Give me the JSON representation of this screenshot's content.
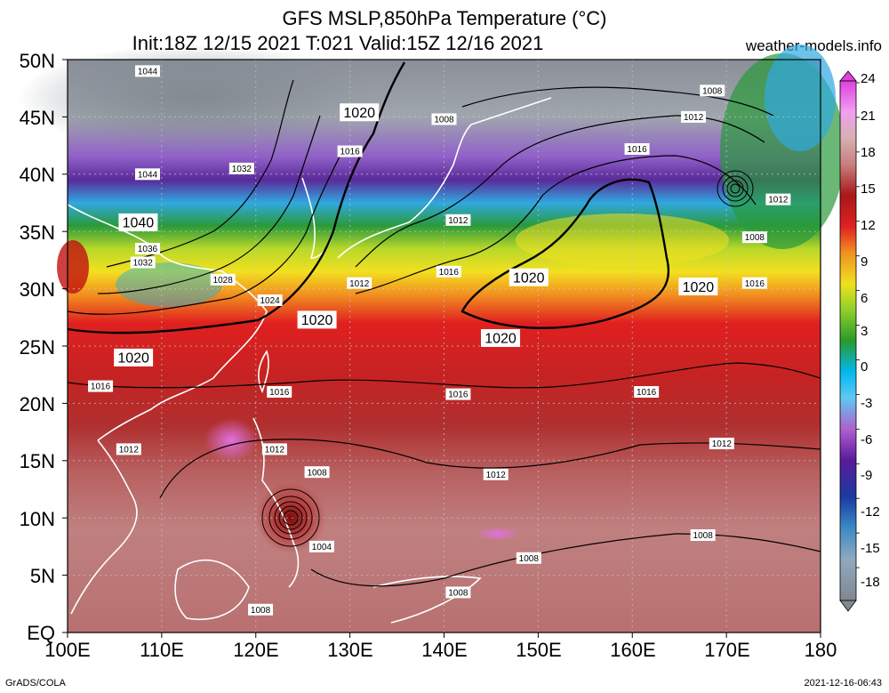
{
  "header": {
    "title_line1": "GFS MSLP,850hPa Temperature (°C)",
    "title_line2": "Init:18Z 12/15 2021 T:021 Valid:15Z 12/16 2021",
    "site": "weather-models.info"
  },
  "axes": {
    "lat_labels": [
      "50N",
      "45N",
      "40N",
      "35N",
      "30N",
      "25N",
      "20N",
      "15N",
      "10N",
      "5N",
      "EQ"
    ],
    "lon_labels": [
      "100E",
      "110E",
      "120E",
      "130E",
      "140E",
      "150E",
      "160E",
      "170E",
      "180"
    ]
  },
  "colorbar": {
    "labels": [
      "24",
      "21",
      "18",
      "15",
      "12",
      "9",
      "6",
      "3",
      "0",
      "-3",
      "-6",
      "-9",
      "-12",
      "-15",
      "-18"
    ],
    "colors": [
      "#c8c8c8",
      "#808890",
      "#3a8ac4",
      "#1a3aa0",
      "#5a1a9a",
      "#b060d0",
      "#2a8ae0",
      "#00b8f0",
      "#2a9a2a",
      "#90d02a",
      "#f0e020",
      "#f09020",
      "#e02020",
      "#a81818",
      "#c88080",
      "#d8a8a8",
      "#f0a0f0",
      "#e040e0"
    ]
  },
  "isobars": [
    {
      "label": "1044",
      "lon": 108.5,
      "lat": 49.0
    },
    {
      "label": "1044",
      "lon": 108.5,
      "lat": 40.0
    },
    {
      "label": "1040",
      "lon": 107.5,
      "lat": 35.8
    },
    {
      "label": "1036",
      "lon": 108.5,
      "lat": 33.5
    },
    {
      "label": "1032",
      "lon": 108.0,
      "lat": 32.3
    },
    {
      "label": "1032",
      "lon": 118.5,
      "lat": 40.5
    },
    {
      "label": "1028",
      "lon": 116.5,
      "lat": 30.8
    },
    {
      "label": "1024",
      "lon": 121.5,
      "lat": 29.0
    },
    {
      "label": "1020",
      "lon": 126.5,
      "lat": 27.3
    },
    {
      "label": "1020",
      "lon": 107.0,
      "lat": 24.0
    },
    {
      "label": "1020",
      "lon": 131.0,
      "lat": 45.4
    },
    {
      "label": "1016",
      "lon": 130.0,
      "lat": 42.0
    },
    {
      "label": "1008",
      "lon": 140.0,
      "lat": 44.8
    },
    {
      "label": "1008",
      "lon": 168.5,
      "lat": 47.3
    },
    {
      "label": "1012",
      "lon": 166.5,
      "lat": 45.0
    },
    {
      "label": "1016",
      "lon": 160.5,
      "lat": 42.2
    },
    {
      "label": "1012",
      "lon": 141.5,
      "lat": 36.0
    },
    {
      "label": "1016",
      "lon": 140.5,
      "lat": 31.5
    },
    {
      "label": "1012",
      "lon": 131.0,
      "lat": 30.5
    },
    {
      "label": "1020",
      "lon": 149.0,
      "lat": 31.0
    },
    {
      "label": "1020",
      "lon": 167.0,
      "lat": 30.2
    },
    {
      "label": "1020",
      "lon": 146.0,
      "lat": 25.7
    },
    {
      "label": "1012",
      "lon": 175.5,
      "lat": 37.8
    },
    {
      "label": "1008",
      "lon": 173.0,
      "lat": 34.5
    },
    {
      "label": "1016",
      "lon": 173.0,
      "lat": 30.5
    },
    {
      "label": "1016",
      "lon": 103.5,
      "lat": 21.5
    },
    {
      "label": "1016",
      "lon": 122.5,
      "lat": 21.0
    },
    {
      "label": "1016",
      "lon": 141.5,
      "lat": 20.8
    },
    {
      "label": "1016",
      "lon": 161.5,
      "lat": 21.0
    },
    {
      "label": "1012",
      "lon": 169.5,
      "lat": 16.5
    },
    {
      "label": "1012",
      "lon": 106.5,
      "lat": 16.0
    },
    {
      "label": "1012",
      "lon": 122.0,
      "lat": 16.0
    },
    {
      "label": "1012",
      "lon": 145.5,
      "lat": 13.8
    },
    {
      "label": "1008",
      "lon": 126.5,
      "lat": 14.0
    },
    {
      "label": "1004",
      "lon": 127.0,
      "lat": 7.5
    },
    {
      "label": "1008",
      "lon": 167.5,
      "lat": 8.5
    },
    {
      "label": "1008",
      "lon": 149.0,
      "lat": 6.5
    },
    {
      "label": "1008",
      "lon": 141.5,
      "lat": 3.5
    },
    {
      "label": "1008",
      "lon": 120.5,
      "lat": 2.0
    }
  ],
  "footer": {
    "left": "GrADS/COLA",
    "right": "2021-12-16-06:43"
  }
}
